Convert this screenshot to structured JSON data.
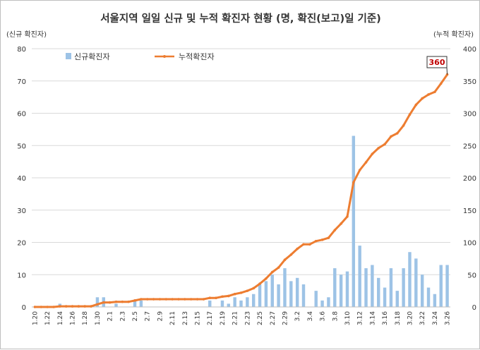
{
  "chart_data": {
    "type": "bar",
    "title": "서울지역 일일 신규 및 누적 확진자 현황 (명, 확진(보고)일 기준)",
    "y_left_label": "(신규 확진자)",
    "y_right_label": "(누적 확진자)",
    "ylim_left": [
      0,
      80
    ],
    "ylim_right": [
      0,
      400
    ],
    "y_left_ticks": [
      "0",
      "10",
      "20",
      "30",
      "40",
      "50",
      "60",
      "70",
      "80"
    ],
    "y_right_ticks": [
      "0",
      "50",
      "100",
      "150",
      "200",
      "250",
      "300",
      "350",
      "400"
    ],
    "grid": true,
    "legend_position": "top-left",
    "x": [
      "1.20",
      "1.21",
      "1.22",
      "1.23",
      "1.24",
      "1.25",
      "1.26",
      "1.27",
      "1.28",
      "1.29",
      "1.30",
      "1.31",
      "2.1",
      "2.2",
      "2.3",
      "2.4",
      "2.5",
      "2.6",
      "2.7",
      "2.8",
      "2.9",
      "2.10",
      "2.11",
      "2.12",
      "2.13",
      "2.14",
      "2.15",
      "2.16",
      "2.17",
      "2.18",
      "2.19",
      "2.20",
      "2.21",
      "2.22",
      "2.23",
      "2.24",
      "2.25",
      "2.26",
      "2.27",
      "2.28",
      "2.29",
      "3.1",
      "3.2",
      "3.3",
      "3.4",
      "3.5",
      "3.6",
      "3.7",
      "3.8",
      "3.9",
      "3.10",
      "3.11",
      "3.12",
      "3.13",
      "3.14",
      "3.15",
      "3.16",
      "3.17",
      "3.18",
      "3.19",
      "3.20",
      "3.21",
      "3.22",
      "3.23",
      "3.24",
      "3.25",
      "3.26"
    ],
    "x_tick_labels": [
      "1.20",
      "1.22",
      "1.24",
      "1.26",
      "1.28",
      "1.30",
      "2.1",
      "2.3",
      "2.5",
      "2.7",
      "2.9",
      "2.11",
      "2.13",
      "2.15",
      "2.17",
      "2.19",
      "2.21",
      "2.23",
      "2.25",
      "2.27",
      "2.29",
      "3.2",
      "3.4",
      "3.6",
      "3.8",
      "3.10",
      "3.12",
      "3.14",
      "3.16",
      "3.18",
      "3.20",
      "3.22",
      "3.24",
      "3.26"
    ],
    "series": [
      {
        "name": "신규확진자",
        "type": "bar",
        "axis": "left",
        "color": "#9dc3e6",
        "values": [
          0,
          0,
          0,
          0,
          1,
          0,
          0,
          0,
          0,
          0,
          3,
          3,
          0,
          1,
          0,
          0,
          2,
          2,
          0,
          0,
          0,
          0,
          0,
          0,
          0,
          0,
          0,
          0,
          2,
          0,
          2,
          1,
          3,
          2,
          3,
          4,
          7,
          8,
          10,
          7,
          12,
          8,
          9,
          7,
          0,
          5,
          2,
          3,
          12,
          10,
          11,
          53,
          19,
          12,
          13,
          9,
          6,
          12,
          5,
          12,
          17,
          15,
          10,
          6,
          4,
          13,
          13
        ]
      },
      {
        "name": "누적확진자",
        "type": "line",
        "axis": "right",
        "color": "#ed7d31",
        "values": [
          0,
          0,
          0,
          0,
          1,
          1,
          1,
          1,
          1,
          1,
          4,
          7,
          7,
          8,
          8,
          8,
          10,
          12,
          12,
          12,
          12,
          12,
          12,
          12,
          12,
          12,
          12,
          12,
          14,
          14,
          16,
          17,
          20,
          22,
          25,
          29,
          36,
          44,
          54,
          61,
          73,
          81,
          90,
          97,
          97,
          102,
          104,
          107,
          119,
          129,
          140,
          193,
          212,
          224,
          237,
          246,
          252,
          264,
          269,
          281,
          298,
          313,
          323,
          329,
          333,
          346,
          360
        ]
      }
    ],
    "annotations": [
      "360"
    ]
  }
}
